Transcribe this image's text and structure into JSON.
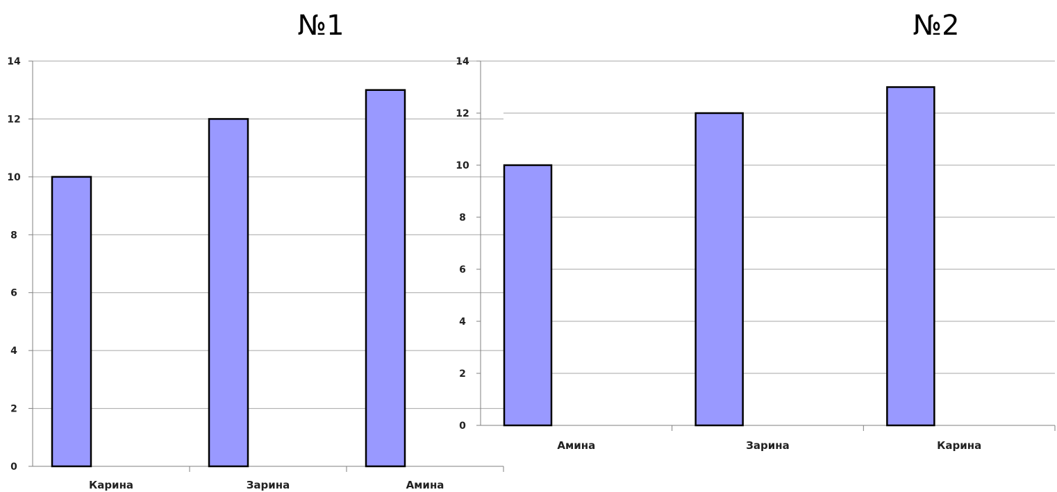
{
  "chart_data": [
    {
      "type": "bar",
      "title": "№1",
      "categories": [
        "Карина",
        "Зарина",
        "Амина"
      ],
      "values": [
        10,
        12,
        13
      ],
      "ylim": [
        0,
        14
      ],
      "yticks": [
        0,
        2,
        4,
        6,
        8,
        10,
        12,
        14
      ],
      "grid": true,
      "bar_color": "#9999ff",
      "legend": "none"
    },
    {
      "type": "bar",
      "title": "№2",
      "categories": [
        "Амина",
        "Зарина",
        "Карина"
      ],
      "values": [
        10,
        12,
        13
      ],
      "ylim": [
        0,
        14
      ],
      "yticks": [
        0,
        2,
        4,
        6,
        8,
        10,
        12,
        14
      ],
      "grid": true,
      "bar_color": "#9999ff",
      "legend": "none"
    }
  ]
}
